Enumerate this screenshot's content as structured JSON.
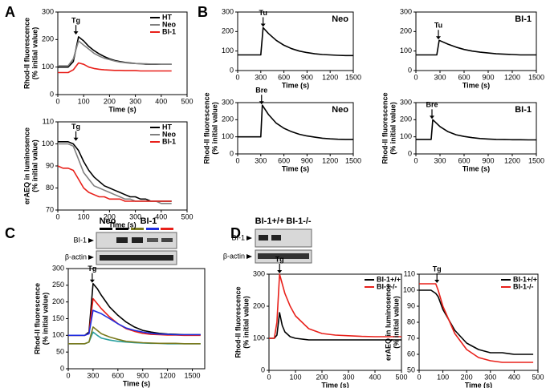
{
  "panels": [
    "A",
    "B",
    "C",
    "D"
  ],
  "blots": [
    {
      "groups": [
        "Neo",
        "BI-1"
      ],
      "rows": [
        "BI-1",
        "β-actin"
      ]
    },
    {
      "groups": [
        "BI-1+/+",
        "BI-1-/-"
      ],
      "rows": [
        "BI-1",
        "β-actin"
      ]
    }
  ],
  "chart_data": [
    {
      "type": "line",
      "ylabel": [
        "Rhod-II fluorescence",
        "(% initial value)"
      ],
      "xlabel": "Time (s)",
      "xlim": [
        0,
        500
      ],
      "xticks": [
        0,
        100,
        200,
        300,
        400,
        500
      ],
      "ylim": [
        0,
        300
      ],
      "yticks": [
        0,
        100,
        200,
        300
      ],
      "legend": "upper right",
      "annotation": {
        "text": "Tg",
        "x": 70,
        "y": 215
      },
      "x": [
        0,
        20,
        40,
        60,
        80,
        100,
        120,
        140,
        160,
        180,
        200,
        220,
        240,
        260,
        280,
        300,
        320,
        340,
        360,
        380,
        400,
        420,
        440
      ],
      "series": [
        {
          "name": "HT",
          "color": "#000000",
          "values": [
            100,
            100,
            100,
            120,
            210,
            195,
            175,
            160,
            148,
            138,
            130,
            124,
            120,
            117,
            115,
            113,
            112,
            111,
            110,
            110,
            110,
            110,
            110
          ]
        },
        {
          "name": "Neo",
          "color": "#808080",
          "values": [
            105,
            105,
            105,
            130,
            195,
            180,
            165,
            150,
            140,
            132,
            127,
            122,
            118,
            116,
            114,
            113,
            112,
            112,
            111,
            111,
            110,
            110,
            110
          ]
        },
        {
          "name": "BI-1",
          "color": "#e8201a",
          "values": [
            80,
            80,
            80,
            90,
            115,
            110,
            100,
            95,
            92,
            90,
            89,
            88,
            88,
            87,
            87,
            87,
            86,
            86,
            86,
            86,
            86,
            86,
            86
          ]
        }
      ]
    },
    {
      "type": "line",
      "ylabel": [
        "erAEQ in luminosence",
        "(% initial value)"
      ],
      "xlabel": "Time (s)",
      "xlim": [
        0,
        500
      ],
      "xticks": [
        0,
        100,
        200,
        300,
        400,
        500
      ],
      "ylim": [
        70,
        110
      ],
      "yticks": [
        70,
        80,
        90,
        100,
        110
      ],
      "legend": "upper right",
      "annotation": {
        "text": "Tg",
        "x": 70,
        "y": 101
      },
      "x": [
        0,
        20,
        40,
        60,
        80,
        100,
        120,
        140,
        160,
        180,
        200,
        220,
        240,
        260,
        280,
        300,
        320,
        340,
        360,
        380,
        400,
        420,
        440
      ],
      "series": [
        {
          "name": "HT",
          "color": "#000000",
          "values": [
            101,
            101,
            101,
            100,
            97,
            92,
            88,
            85,
            83,
            81,
            80,
            79,
            78,
            77,
            76,
            76,
            75,
            75,
            74,
            74,
            74,
            74,
            74
          ]
        },
        {
          "name": "Neo",
          "color": "#808080",
          "values": [
            100,
            100,
            100,
            99,
            93,
            87,
            84,
            81,
            80,
            79,
            78,
            77,
            76,
            75,
            75,
            74,
            74,
            74,
            74,
            74,
            73,
            73,
            73
          ]
        },
        {
          "name": "BI-1",
          "color": "#e8201a",
          "values": [
            90,
            89,
            89,
            88,
            84,
            80,
            78,
            77,
            76,
            76,
            75,
            75,
            75,
            74,
            74,
            74,
            74,
            74,
            74,
            74,
            74,
            74,
            74
          ]
        }
      ]
    },
    {
      "type": "line",
      "label": "Neo",
      "xlabel": "Time (s)",
      "xlim": [
        0,
        1500
      ],
      "xticks": [
        0,
        300,
        600,
        900,
        1200,
        1500
      ],
      "ylim": [
        0,
        300
      ],
      "yticks": [
        0,
        100,
        200,
        300
      ],
      "annotation": {
        "text": "Tu",
        "x": 330,
        "y": 220
      },
      "x": [
        0,
        100,
        200,
        300,
        330,
        400,
        500,
        600,
        700,
        800,
        900,
        1000,
        1100,
        1200,
        1300,
        1400,
        1500
      ],
      "series": [
        {
          "color": "#000000",
          "values": [
            80,
            80,
            80,
            80,
            220,
            190,
            155,
            130,
            112,
            100,
            92,
            86,
            82,
            80,
            78,
            77,
            77
          ]
        }
      ]
    },
    {
      "type": "line",
      "label": "BI-1",
      "xlabel": "Time (s)",
      "xlim": [
        0,
        1500
      ],
      "xticks": [
        0,
        300,
        600,
        900,
        1200,
        1500
      ],
      "ylim": [
        0,
        300
      ],
      "yticks": [
        0,
        100,
        200,
        300
      ],
      "annotation": {
        "text": "Tu",
        "x": 280,
        "y": 155
      },
      "x": [
        0,
        100,
        200,
        260,
        290,
        400,
        500,
        600,
        700,
        800,
        900,
        1000,
        1100,
        1200,
        1300,
        1400,
        1500
      ],
      "series": [
        {
          "color": "#000000",
          "values": [
            80,
            80,
            80,
            80,
            155,
            135,
            120,
            108,
            100,
            94,
            90,
            86,
            84,
            82,
            80,
            80,
            80
          ]
        }
      ]
    },
    {
      "type": "line",
      "label": "Neo",
      "ylabel": [
        "Rhod-II fluorescence",
        "(% initial value)"
      ],
      "xlabel": "Time (s)",
      "xlim": [
        0,
        1500
      ],
      "xticks": [
        0,
        300,
        600,
        900,
        1200,
        1500
      ],
      "ylim": [
        0,
        300
      ],
      "yticks": [
        0,
        100,
        200,
        300
      ],
      "annotation": {
        "text": "Bre",
        "x": 310,
        "y": 285
      },
      "x": [
        0,
        100,
        200,
        300,
        320,
        400,
        500,
        600,
        700,
        800,
        900,
        1000,
        1100,
        1200,
        1300,
        1400,
        1500
      ],
      "series": [
        {
          "color": "#000000",
          "values": [
            100,
            100,
            100,
            100,
            285,
            230,
            180,
            150,
            130,
            115,
            105,
            98,
            92,
            88,
            86,
            85,
            85
          ]
        }
      ]
    },
    {
      "type": "line",
      "label": "BI-1",
      "ylabel": [
        "Rhod-II fluorescence",
        "(% initial value)"
      ],
      "xlabel": "Time (s)",
      "xlim": [
        0,
        1500
      ],
      "xticks": [
        0,
        300,
        600,
        900,
        1200,
        1500
      ],
      "ylim": [
        0,
        300
      ],
      "yticks": [
        0,
        100,
        200,
        300
      ],
      "annotation": {
        "text": "Bre",
        "x": 200,
        "y": 200
      },
      "x": [
        0,
        100,
        150,
        190,
        210,
        300,
        400,
        500,
        600,
        700,
        800,
        900,
        1000,
        1100,
        1200,
        1300,
        1400,
        1500
      ],
      "series": [
        {
          "color": "#000000",
          "values": [
            85,
            85,
            85,
            85,
            200,
            160,
            130,
            112,
            102,
            95,
            90,
            87,
            85,
            84,
            83,
            83,
            82,
            82
          ]
        }
      ]
    },
    {
      "type": "line",
      "ylabel": [
        "Rhod-II fluorescence",
        "(% initial value)"
      ],
      "xlabel": "Time (s)",
      "xlim": [
        0,
        1650
      ],
      "xticks": [
        0,
        300,
        600,
        900,
        1200,
        1500
      ],
      "ylim": [
        0,
        300
      ],
      "yticks": [
        0,
        50,
        100,
        150,
        200,
        250,
        300
      ],
      "annotation": {
        "text": "Tg",
        "x": 290,
        "y": 255
      },
      "x": [
        0,
        100,
        200,
        250,
        300,
        350,
        400,
        500,
        600,
        700,
        800,
        900,
        1000,
        1100,
        1200,
        1300,
        1400,
        1500,
        1600
      ],
      "series": [
        {
          "color": "#000000",
          "values": [
            100,
            100,
            100,
            110,
            255,
            240,
            220,
            185,
            160,
            140,
            125,
            115,
            110,
            106,
            104,
            103,
            102,
            102,
            102
          ]
        },
        {
          "color": "#e8201a",
          "values": [
            100,
            100,
            100,
            105,
            210,
            195,
            180,
            155,
            135,
            120,
            112,
            106,
            103,
            102,
            101,
            101,
            100,
            100,
            100
          ]
        },
        {
          "color": "#1f2ee0",
          "values": [
            100,
            100,
            100,
            105,
            175,
            170,
            165,
            150,
            135,
            122,
            115,
            110,
            106,
            104,
            103,
            102,
            102,
            102,
            102
          ]
        },
        {
          "color": "#2aa0a0",
          "values": [
            75,
            75,
            75,
            80,
            110,
            100,
            92,
            86,
            82,
            80,
            78,
            77,
            76,
            76,
            75,
            75,
            75,
            75,
            75
          ]
        },
        {
          "color": "#7a7a1e",
          "values": [
            75,
            75,
            75,
            80,
            125,
            115,
            105,
            95,
            88,
            82,
            80,
            78,
            77,
            76,
            76,
            76,
            75,
            75,
            75
          ]
        }
      ]
    },
    {
      "type": "line",
      "ylabel": [
        "Rhod-II fluorescence",
        "(% initial value)"
      ],
      "xlabel": "Time (s)",
      "xlim": [
        0,
        500
      ],
      "xticks": [
        0,
        100,
        200,
        300,
        400,
        500
      ],
      "ylim": [
        0,
        300
      ],
      "yticks": [
        0,
        100,
        200,
        300
      ],
      "legend": "upper right",
      "annotation": {
        "text": "Tg",
        "x": 40,
        "y": 300
      },
      "x": [
        0,
        20,
        30,
        40,
        50,
        60,
        80,
        100,
        150,
        200,
        250,
        300,
        350,
        400,
        450,
        500
      ],
      "series": [
        {
          "name": "BI-1+/+",
          "color": "#000000",
          "values": [
            100,
            100,
            110,
            180,
            140,
            120,
            105,
            100,
            95,
            95,
            95,
            95,
            95,
            95,
            95,
            95
          ]
        },
        {
          "name": "BI-1-/-",
          "color": "#e8201a",
          "values": [
            100,
            100,
            150,
            300,
            270,
            240,
            200,
            170,
            130,
            115,
            110,
            108,
            106,
            105,
            105,
            105
          ]
        }
      ]
    },
    {
      "type": "line",
      "ylabel": [
        "erAEQ in luminosence",
        "(% initial value)"
      ],
      "xlabel": "Time (s)",
      "xlim": [
        0,
        500
      ],
      "xticks": [
        0,
        100,
        200,
        300,
        400,
        500
      ],
      "ylim": [
        50,
        110
      ],
      "yticks": [
        50,
        60,
        70,
        80,
        90,
        100,
        110
      ],
      "legend": "upper right",
      "annotation": {
        "text": "Tg",
        "x": 75,
        "y": 104
      },
      "x": [
        0,
        50,
        70,
        80,
        100,
        150,
        200,
        250,
        300,
        350,
        400,
        450,
        480
      ],
      "series": [
        {
          "name": "BI-1+/+",
          "color": "#000000",
          "values": [
            100,
            100,
            98,
            96,
            88,
            75,
            67,
            63,
            61,
            61,
            60,
            60,
            60
          ]
        },
        {
          "name": "BI-1-/-",
          "color": "#e8201a",
          "values": [
            104,
            104,
            104,
            100,
            90,
            73,
            63,
            58,
            56,
            55,
            55,
            55,
            55
          ]
        }
      ]
    }
  ]
}
